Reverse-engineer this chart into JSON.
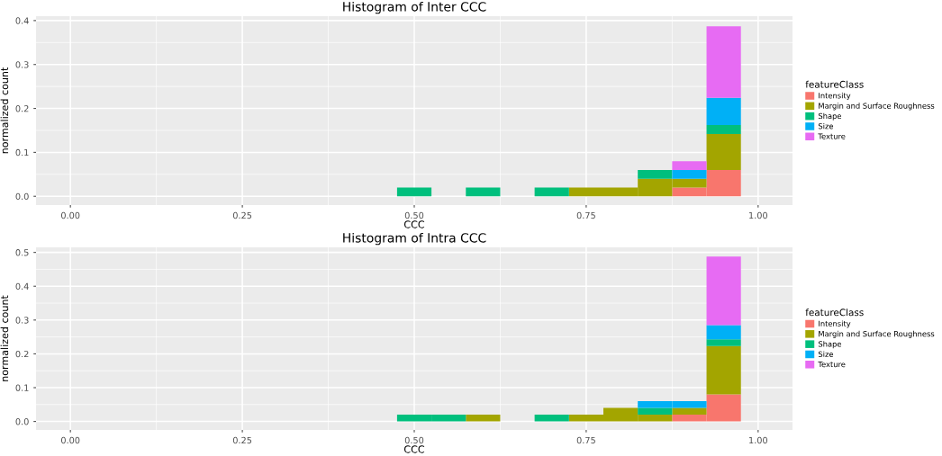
{
  "chart_data": [
    {
      "type": "bar",
      "title": "Histogram of Inter CCC",
      "xlabel": "CCC",
      "ylabel": "normalized count",
      "legend_title": "featureClass",
      "stacked": true,
      "x": [
        0.5,
        0.55,
        0.6,
        0.65,
        0.7,
        0.75,
        0.8,
        0.85,
        0.9,
        0.95
      ],
      "series": [
        {
          "name": "Intensity",
          "color": "#f8766d",
          "values": [
            0,
            0,
            0,
            0,
            0,
            0,
            0,
            0,
            0.02,
            0.06
          ]
        },
        {
          "name": "Margin and Surface Roughness",
          "color": "#a3a500",
          "values": [
            0,
            0,
            0,
            0,
            0,
            0.02,
            0.02,
            0.04,
            0.02,
            0.082
          ]
        },
        {
          "name": "Shape",
          "color": "#00bf7d",
          "values": [
            0.02,
            0,
            0.02,
            0,
            0.02,
            0,
            0,
            0.02,
            0,
            0.02
          ]
        },
        {
          "name": "Size",
          "color": "#00b0f6",
          "values": [
            0,
            0,
            0,
            0,
            0,
            0,
            0,
            0,
            0.02,
            0.062
          ]
        },
        {
          "name": "Texture",
          "color": "#e76bf3",
          "values": [
            0,
            0,
            0,
            0,
            0,
            0,
            0,
            0,
            0.02,
            0.163
          ]
        }
      ],
      "xlim": [
        -0.05,
        1.05
      ],
      "xticks": [
        {
          "value": 0,
          "label": "0.00"
        },
        {
          "value": 0.25,
          "label": "0.25"
        },
        {
          "value": 0.5,
          "label": "0.50"
        },
        {
          "value": 0.75,
          "label": "0.75"
        },
        {
          "value": 1,
          "label": "1.00"
        }
      ],
      "ylim": [
        -0.02,
        0.41
      ],
      "yticks": [
        {
          "value": 0,
          "label": "0.0"
        },
        0.1,
        0.2,
        0.3,
        0.4
      ],
      "grid": true,
      "legend": "right"
    },
    {
      "type": "bar",
      "title": "Histogram of Intra CCC",
      "xlabel": "CCC",
      "ylabel": "normalized count",
      "legend_title": "featureClass",
      "stacked": true,
      "x": [
        0.5,
        0.55,
        0.6,
        0.65,
        0.7,
        0.75,
        0.8,
        0.85,
        0.9,
        0.95
      ],
      "series": [
        {
          "name": "Intensity",
          "color": "#f8766d",
          "values": [
            0,
            0,
            0,
            0,
            0,
            0,
            0,
            0,
            0.02,
            0.08
          ]
        },
        {
          "name": "Margin and Surface Roughness",
          "color": "#a3a500",
          "values": [
            0,
            0,
            0.02,
            0,
            0,
            0.02,
            0.04,
            0.02,
            0.02,
            0.143
          ]
        },
        {
          "name": "Shape",
          "color": "#00bf7d",
          "values": [
            0.02,
            0.02,
            0,
            0,
            0.02,
            0,
            0,
            0.02,
            0,
            0.02
          ]
        },
        {
          "name": "Size",
          "color": "#00b0f6",
          "values": [
            0,
            0,
            0,
            0,
            0,
            0,
            0,
            0.02,
            0.02,
            0.042
          ]
        },
        {
          "name": "Texture",
          "color": "#e76bf3",
          "values": [
            0,
            0,
            0,
            0,
            0,
            0,
            0,
            0,
            0,
            0.203
          ]
        }
      ],
      "xlim": [
        -0.05,
        1.05
      ],
      "xticks": [
        {
          "value": 0,
          "label": "0.00"
        },
        {
          "value": 0.25,
          "label": "0.25"
        },
        {
          "value": 0.5,
          "label": "0.50"
        },
        {
          "value": 0.75,
          "label": "0.75"
        },
        {
          "value": 1,
          "label": "1.00"
        }
      ],
      "ylim": [
        -0.025,
        0.515
      ],
      "yticks": [
        {
          "value": 0,
          "label": "0.0"
        },
        0.1,
        0.2,
        0.3,
        0.4,
        0.5
      ],
      "grid": true,
      "legend": "right"
    }
  ]
}
